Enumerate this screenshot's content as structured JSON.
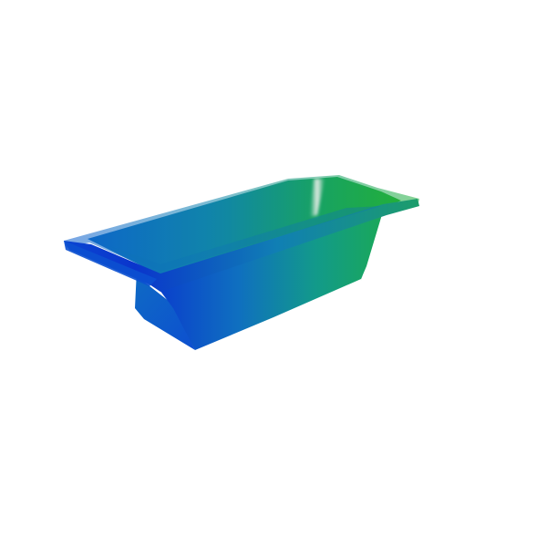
{
  "scene": {
    "object": "bathtub",
    "background_color": "#ffffff",
    "colors": {
      "deep_blue": "#0a2fd0",
      "blue": "#0d5fc8",
      "teal": "#1290a0",
      "green": "#16a44a",
      "bright_green": "#2db52a",
      "highlight": "#e4ece6"
    }
  }
}
